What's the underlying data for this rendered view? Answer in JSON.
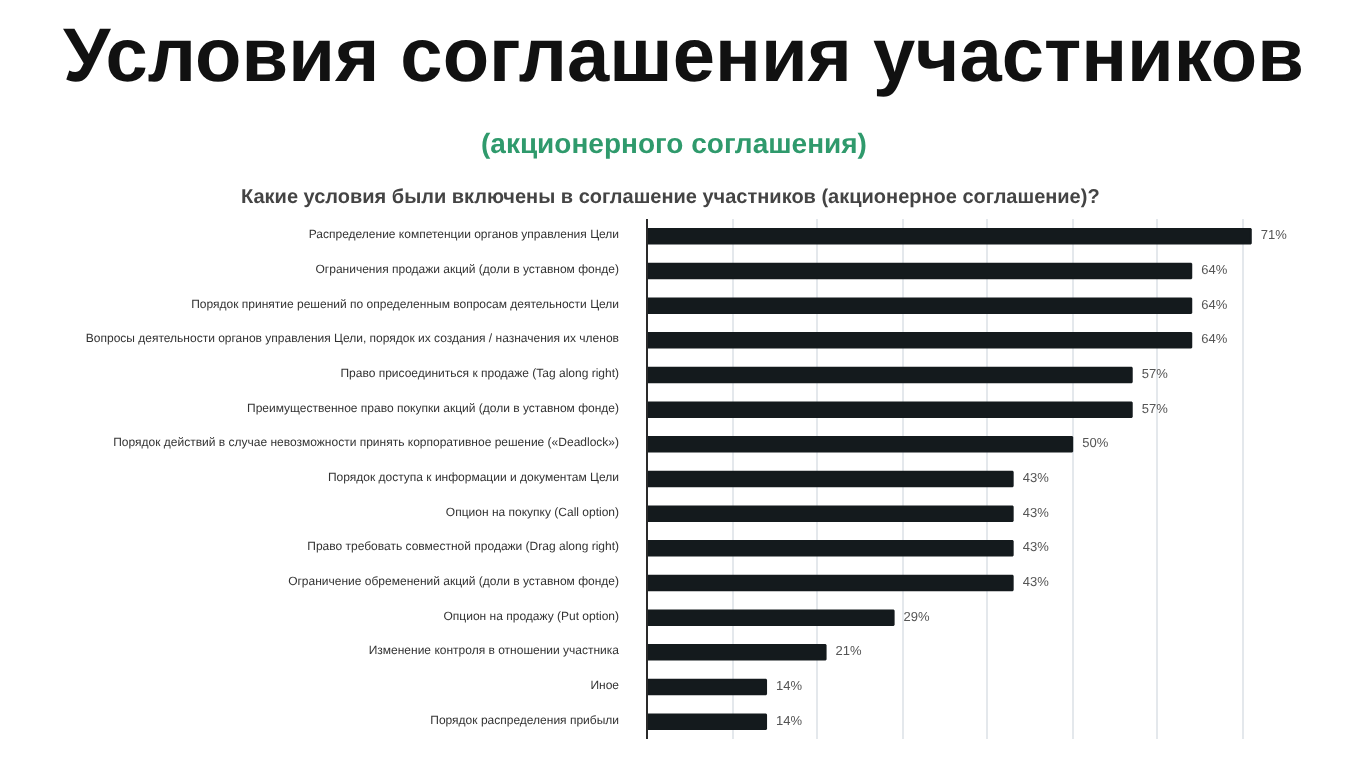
{
  "chart_data": {
    "type": "bar",
    "orientation": "horizontal",
    "title": "Условия соглашения участников",
    "subtitle": "(акционерного соглашения)",
    "annotations": [
      "Какие условия были включены в соглашение участников (акционерное соглашение)?"
    ],
    "categories": [
      "Распределение компетенции органов управления Цели",
      "Ограничения продажи акций (доли в уставном фонде)",
      "Порядок принятие решений по определенным вопросам деятельности Цели",
      "Вопросы деятельности органов управления Цели, порядок их создания / назначения их членов",
      "Право присоединиться к продаже (Tag along right)",
      "Преимущественное право покупки акций (доли в уставном фонде)",
      "Порядок действий в случае невозможности принять корпоративное решение («Deadlock»)",
      "Порядок доступа к информации и документам Цели",
      "Опцион на покупку (Call option)",
      "Право требовать совместной продажи (Drag along right)",
      "Ограничение обременений акций (доли в уставном фонде)",
      "Опцион на продажу (Put option)",
      "Изменение контроля в отношении участника",
      "Иное",
      "Порядок распределения прибыли"
    ],
    "values": [
      71,
      64,
      64,
      64,
      57,
      57,
      50,
      43,
      43,
      43,
      43,
      29,
      21,
      14,
      14
    ],
    "value_labels": [
      "71%",
      "64%",
      "64%",
      "64%",
      "57%",
      "57%",
      "50%",
      "43%",
      "43%",
      "43%",
      "43%",
      "29%",
      "21%",
      "14%",
      "14%"
    ],
    "color": "#141a1d",
    "grid": "x",
    "tick_labels": "y"
  }
}
